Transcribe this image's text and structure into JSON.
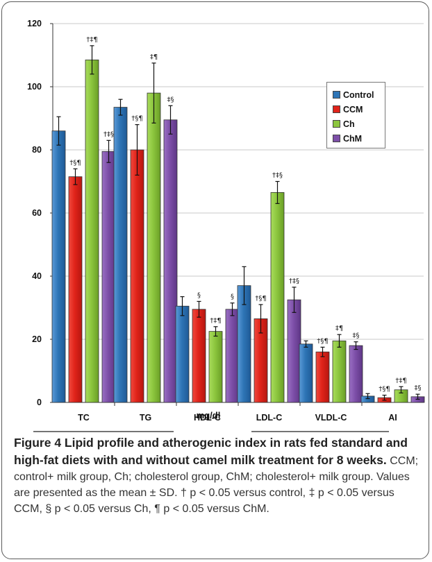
{
  "chart_data": {
    "type": "bar",
    "categories": [
      "TC",
      "TG",
      "HDL-C",
      "LDL-C",
      "VLDL-C",
      "AI"
    ],
    "xlabel": "mg/dl",
    "ylabel": "",
    "ylim": [
      0,
      120
    ],
    "yticks": [
      0,
      20,
      40,
      60,
      80,
      100,
      120
    ],
    "grid": true,
    "legend_position": "top-right",
    "series": [
      {
        "name": "Control",
        "color": "#2e75b6",
        "values": [
          86,
          93.5,
          30.5,
          37,
          18.5,
          2
        ],
        "errors": [
          4.5,
          2.5,
          3,
          6,
          1,
          0.8
        ],
        "annotations": [
          "",
          "",
          "",
          "",
          "",
          ""
        ]
      },
      {
        "name": "CCM",
        "color": "#e0231a",
        "values": [
          71.5,
          80,
          29.5,
          26.5,
          16,
          1.5
        ],
        "errors": [
          2.5,
          8,
          2.5,
          4.5,
          1.5,
          0.8
        ],
        "annotations": [
          "†§¶",
          "†§¶",
          "§",
          "†§¶",
          "†§¶",
          "†§¶"
        ]
      },
      {
        "name": "Ch",
        "color": "#8cc63e",
        "values": [
          108.5,
          98,
          22.5,
          66.5,
          19.5,
          4
        ],
        "errors": [
          4.5,
          9.5,
          1.5,
          3.5,
          2,
          1
        ],
        "annotations": [
          "†‡¶",
          "‡¶",
          "†‡¶",
          "†‡§",
          "‡¶",
          "†‡¶"
        ]
      },
      {
        "name": "ChM",
        "color": "#7d4fa8",
        "values": [
          79.5,
          89.5,
          29.5,
          32.5,
          18,
          1.8
        ],
        "errors": [
          3.5,
          4.5,
          2,
          4,
          1.2,
          0.8
        ],
        "annotations": [
          "†‡§",
          "‡§",
          "§",
          "†‡§",
          "‡§",
          "‡§"
        ]
      }
    ]
  },
  "caption": {
    "title": "Figure 4 Lipid profile and atherogenic index in rats fed standard and high-fat diets with and without camel milk treatment for 8 weeks.",
    "text": "CCM; control+ milk group, Ch; cholesterol group, ChM; cholesterol+ milk group. Values are presented as the mean ± SD. † p < 0.05 versus control, ‡ p < 0.05 versus CCM, § p < 0.05 versus Ch, ¶ p < 0.05 versus ChM."
  }
}
